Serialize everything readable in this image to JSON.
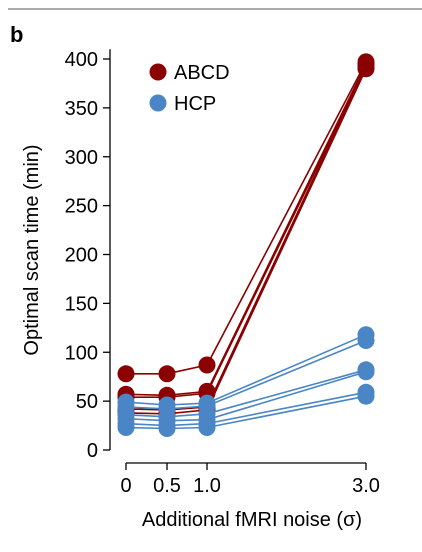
{
  "panel_label": "b",
  "chart_data": {
    "type": "line",
    "ylabel": "Optimal scan time (min)",
    "xlabel": "Additional fMRI noise (σ)",
    "x": [
      0,
      0.5,
      1.0,
      3.0
    ],
    "xtick_labels": [
      "0",
      "0.5",
      "1.0",
      "3.0"
    ],
    "yticks": [
      0,
      50,
      100,
      150,
      200,
      250,
      300,
      350,
      400
    ],
    "ylim": [
      0,
      410
    ],
    "grid": false,
    "legend_placement": "top-left",
    "legend": [
      {
        "label": "ABCD",
        "color": "#8b0000"
      },
      {
        "label": "HCP",
        "color": "#4a86c5"
      }
    ],
    "groups": [
      {
        "dataset": "ABCD",
        "color": "#8b0000",
        "series": [
          {
            "values": [
              78,
              78,
              87,
              397
            ]
          },
          {
            "values": [
              57,
              56,
              60,
              395
            ]
          },
          {
            "values": [
              54,
              54,
              58,
              392
            ]
          },
          {
            "values": [
              42,
              41,
              44,
              393
            ]
          },
          {
            "values": [
              38,
              37,
              41,
              390
            ]
          }
        ]
      },
      {
        "dataset": "HCP",
        "color": "#4a86c5",
        "series": [
          {
            "values": [
              49,
              46,
              48,
              118
            ]
          },
          {
            "values": [
              44,
              42,
              45,
              112
            ]
          },
          {
            "values": [
              36,
              34,
              37,
              82
            ]
          },
          {
            "values": [
              32,
              30,
              31,
              80
            ]
          },
          {
            "values": [
              27,
              25,
              27,
              59
            ]
          },
          {
            "values": [
              23,
              22,
              23,
              55
            ]
          }
        ]
      }
    ]
  }
}
